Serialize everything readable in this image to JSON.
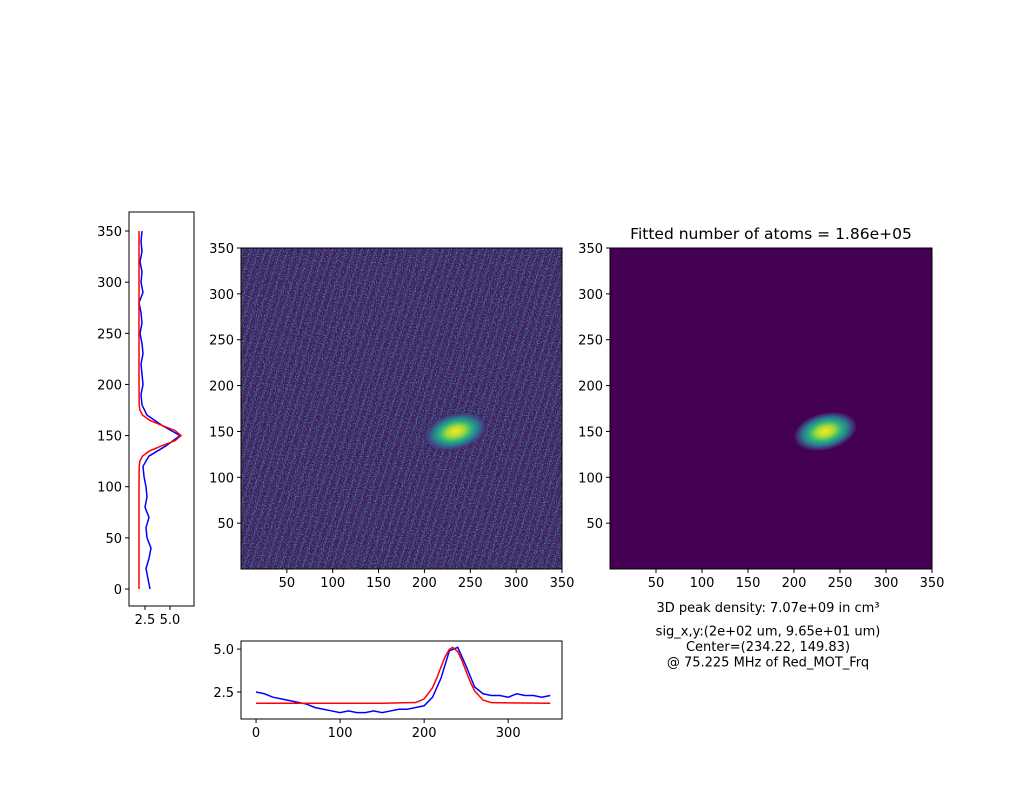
{
  "chart_data": [
    {
      "type": "line",
      "orientation": "vertical",
      "xlim": [
        0.9,
        7.4
      ],
      "xticks": [
        2.5,
        {
          "value": 5,
          "label": "5.0"
        }
      ],
      "ylim": [
        -16.6,
        368.6
      ],
      "yticks": [
        0,
        50,
        100,
        150,
        200,
        250,
        300,
        350
      ],
      "series": [
        {
          "color": "#0000ff",
          "x": [
            0,
            10,
            20,
            30,
            40,
            50,
            60,
            70,
            80,
            90,
            100,
            110,
            120,
            130,
            140,
            150,
            160,
            170,
            180,
            190,
            200,
            210,
            220,
            230,
            240,
            250,
            260,
            270,
            280,
            290,
            300,
            310,
            320,
            330,
            340,
            350
          ],
          "values": [
            3.0,
            2.8,
            2.6,
            2.9,
            3.1,
            2.7,
            2.6,
            2.9,
            2.5,
            2.7,
            2.6,
            2.4,
            2.3,
            2.9,
            4.6,
            6.0,
            4.2,
            2.7,
            2.2,
            2.1,
            2.3,
            2.2,
            2.1,
            2.3,
            2.2,
            2.0,
            2.2,
            2.1,
            1.9,
            2.3,
            2.1,
            2.2,
            2.0,
            2.2,
            2.1,
            2.2
          ]
        },
        {
          "color": "#ff0000",
          "x": [
            0,
            100,
            120,
            125,
            130,
            135,
            140,
            145,
            150,
            155,
            160,
            165,
            170,
            175,
            180,
            200,
            350
          ],
          "values": [
            1.9,
            1.9,
            1.92,
            1.99,
            2.26,
            2.95,
            4.17,
            5.5,
            6.1,
            5.5,
            4.17,
            2.95,
            2.26,
            1.99,
            1.92,
            1.9,
            1.9
          ]
        }
      ]
    },
    {
      "type": "image",
      "colormap": "noisy",
      "xlim": [
        0,
        350
      ],
      "xticks": [
        50,
        100,
        150,
        200,
        250,
        300,
        350
      ],
      "ylim": [
        0,
        350
      ],
      "yticks": [
        50,
        100,
        150,
        200,
        250,
        300,
        350
      ],
      "blob": {
        "x": 234,
        "y": 150
      }
    },
    {
      "type": "line",
      "orientation": "horizontal",
      "xlim": [
        -17.9,
        364
      ],
      "xticks": [
        0,
        100,
        200,
        300
      ],
      "ylim": [
        0.93,
        5.47
      ],
      "yticks": [
        2.5,
        {
          "value": 5,
          "label": "5.0"
        }
      ],
      "series": [
        {
          "color": "#0000ff",
          "x": [
            0,
            10,
            20,
            30,
            40,
            50,
            60,
            70,
            80,
            90,
            100,
            110,
            120,
            130,
            140,
            150,
            160,
            170,
            180,
            190,
            200,
            210,
            220,
            230,
            240,
            250,
            260,
            270,
            280,
            290,
            300,
            310,
            320,
            330,
            340,
            350
          ],
          "values": [
            2.5,
            2.4,
            2.2,
            2.1,
            2.0,
            1.9,
            1.8,
            1.6,
            1.5,
            1.4,
            1.3,
            1.4,
            1.3,
            1.3,
            1.4,
            1.3,
            1.4,
            1.5,
            1.5,
            1.6,
            1.7,
            2.2,
            3.3,
            4.9,
            5.1,
            4.0,
            2.8,
            2.4,
            2.3,
            2.3,
            2.2,
            2.4,
            2.3,
            2.3,
            2.2,
            2.3
          ]
        },
        {
          "color": "#ff0000",
          "x": [
            0,
            150,
            190,
            200,
            210,
            215,
            220,
            225,
            230,
            234,
            240,
            245,
            250,
            255,
            260,
            270,
            280,
            350
          ],
          "values": [
            1.85,
            1.85,
            1.89,
            2.1,
            2.75,
            3.31,
            3.95,
            4.56,
            4.99,
            5.1,
            4.85,
            4.33,
            3.69,
            3.07,
            2.57,
            2.03,
            1.88,
            1.85
          ]
        }
      ]
    },
    {
      "type": "image",
      "colormap": "smooth",
      "title": "Fitted number of atoms = 1.86e+05",
      "xlim": [
        0,
        350
      ],
      "xticks": [
        50,
        100,
        150,
        200,
        250,
        300,
        350
      ],
      "ylim": [
        0,
        350
      ],
      "yticks": [
        50,
        100,
        150,
        200,
        250,
        300,
        350
      ],
      "blob": {
        "x": 234,
        "y": 150
      },
      "annotations": [
        "3D peak density: 7.07e+09 in cm³",
        "sig_x,y:(2e+02 um, 9.65e+01 um)",
        "Center=(234.22, 149.83)",
        "@ 75.225 MHz of Red_MOT_Frq"
      ]
    }
  ]
}
